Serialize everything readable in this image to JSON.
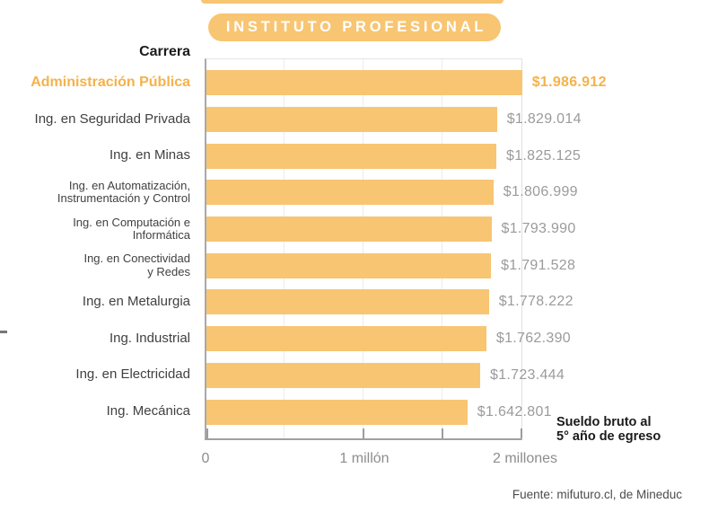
{
  "header": {
    "badge": "INSTITUTO PROFESIONAL",
    "column_label": "Carrera"
  },
  "chart_data": {
    "type": "bar",
    "orientation": "horizontal",
    "title": "INSTITUTO PROFESIONAL",
    "categories": [
      "Administración Pública",
      "Ing. en Seguridad Privada",
      "Ing. en Minas",
      "Ing. en Automatización,\nInstrumentación y Control",
      "Ing. en Computación e\nInformática",
      "Ing. en Conectividad\ny Redes",
      "Ing. en Metalurgia",
      "Ing. Industrial",
      "Ing. en Electricidad",
      "Ing. Mecánica"
    ],
    "values": [
      1986912,
      1829014,
      1825125,
      1806999,
      1793990,
      1791528,
      1778222,
      1762390,
      1723444,
      1642801
    ],
    "value_labels": [
      "$1.986.912",
      "$1.829.014",
      "$1.825.125",
      "$1.806.999",
      "$1.793.990",
      "$1.791.528",
      "$1.778.222",
      "$1.762.390",
      "$1.723.444",
      "$1.642.801"
    ],
    "highlight_index": 0,
    "x_axis": {
      "ticks": [
        "0",
        "1 millón",
        "2 millones"
      ],
      "range": [
        0,
        2000000
      ],
      "grid": true
    },
    "note": "Sueldo bruto al\n5° año de egreso"
  },
  "colors": {
    "accent": "#F8C572",
    "accent_text": "#F5B24A",
    "ink": "#1b1b1b",
    "label": "#414042",
    "value": "#9b9b9b",
    "axis_label": "#8d8d8d",
    "footer": "#4c4c4e",
    "gridline": "#ececec"
  },
  "footer": {
    "source": "Fuente: mifuturo.cl, de Mineduc"
  }
}
